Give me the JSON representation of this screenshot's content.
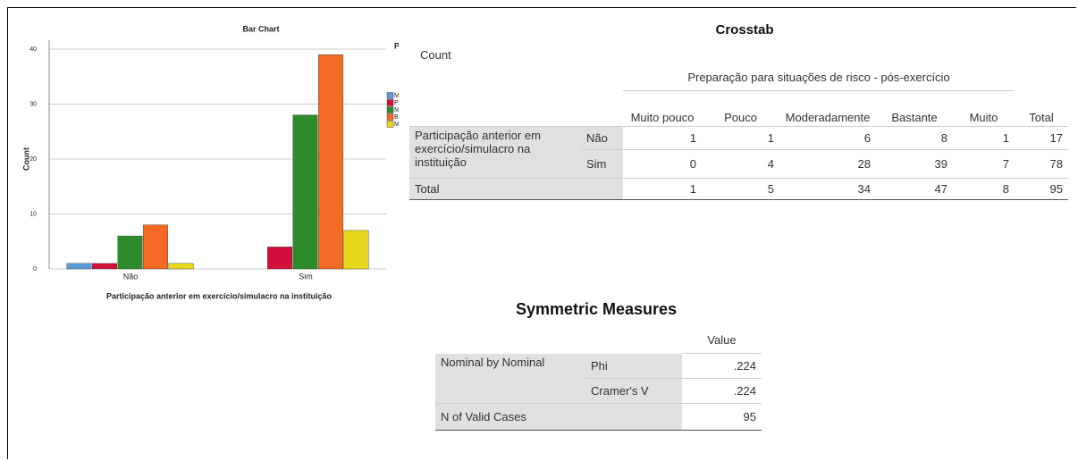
{
  "chart_data": {
    "type": "bar",
    "title": "Bar Chart",
    "y_label": "Count",
    "x_label": "Participação anterior em exercício/simulacro na instituição",
    "legend_title": "Preparação para situações de risco - pós-exercício",
    "categories": [
      "Não",
      "Sim"
    ],
    "series": [
      {
        "name": "Muito pouco",
        "color": "#5b9bd5",
        "values": [
          1,
          0
        ]
      },
      {
        "name": "Pouco",
        "color": "#d2103b",
        "values": [
          1,
          4
        ]
      },
      {
        "name": "Moderadamente",
        "color": "#2e8b2a",
        "values": [
          6,
          28
        ]
      },
      {
        "name": "Bastante",
        "color": "#f46a25",
        "values": [
          8,
          39
        ]
      },
      {
        "name": "Muito",
        "color": "#e7d81c",
        "values": [
          1,
          7
        ]
      }
    ],
    "ylim": [
      0,
      40
    ],
    "yticks": [
      0,
      10,
      20,
      30,
      40
    ],
    "grid": true,
    "legend": "right"
  },
  "crosstab": {
    "title": "Crosstab",
    "count_label": "Count",
    "column_group": "Preparação para situações de risco - pós-exercício",
    "columns": [
      "Muito pouco",
      "Pouco",
      "Moderadamente",
      "Bastante",
      "Muito",
      "Total"
    ],
    "row_group": "Participação anterior em exercício/simulacro na instituição",
    "rows": [
      {
        "label": "Não",
        "values": [
          1,
          1,
          6,
          8,
          1,
          17
        ]
      },
      {
        "label": "Sim",
        "values": [
          0,
          4,
          28,
          39,
          7,
          78
        ]
      }
    ],
    "total": {
      "label": "Total",
      "values": [
        1,
        5,
        34,
        47,
        8,
        95
      ]
    }
  },
  "symmetric_measures": {
    "title": "Symmetric Measures",
    "value_header": "Value",
    "group_label": "Nominal by Nominal",
    "measures": [
      {
        "name": "Phi",
        "value": ".224"
      },
      {
        "name": "Cramer's V",
        "value": ".224"
      }
    ],
    "valid": {
      "label": "N of Valid Cases",
      "value": 95
    }
  }
}
